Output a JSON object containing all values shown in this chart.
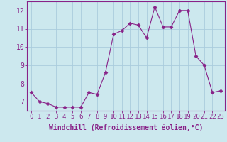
{
  "x": [
    0,
    1,
    2,
    3,
    4,
    5,
    6,
    7,
    8,
    9,
    10,
    11,
    12,
    13,
    14,
    15,
    16,
    17,
    18,
    19,
    20,
    21,
    22,
    23
  ],
  "y": [
    7.5,
    7.0,
    6.9,
    6.7,
    6.7,
    6.7,
    6.7,
    7.5,
    7.4,
    8.6,
    10.7,
    10.9,
    11.3,
    11.2,
    10.5,
    12.2,
    11.1,
    11.1,
    12.0,
    12.0,
    9.5,
    9.0,
    7.5,
    7.6
  ],
  "xlabel": "Windchill (Refroidissement éolien,°C)",
  "ylim": [
    6.5,
    12.5
  ],
  "xlim": [
    -0.5,
    23.5
  ],
  "yticks": [
    7,
    8,
    9,
    10,
    11,
    12
  ],
  "xticks": [
    0,
    1,
    2,
    3,
    4,
    5,
    6,
    7,
    8,
    9,
    10,
    11,
    12,
    13,
    14,
    15,
    16,
    17,
    18,
    19,
    20,
    21,
    22,
    23
  ],
  "line_color": "#882288",
  "marker": "D",
  "marker_size": 2.5,
  "bg_color": "#cce8ee",
  "grid_color": "#aaccdd",
  "label_color": "#882288",
  "tick_color": "#882288",
  "spine_color": "#882288",
  "xlabel_fontsize": 7,
  "tick_fontsize": 6.5
}
